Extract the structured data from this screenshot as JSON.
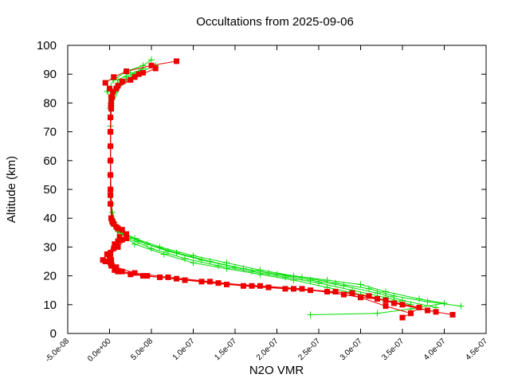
{
  "chart_data": {
    "type": "line",
    "title": "Occultations from 2025-09-06",
    "xlabel": "N2O VMR",
    "ylabel": "Altitude (km)",
    "xlim": [
      -5e-08,
      4.5e-07
    ],
    "ylim": [
      0,
      100
    ],
    "xticks": [
      -5e-08,
      0,
      5e-08,
      1e-07,
      1.5e-07,
      2e-07,
      2.5e-07,
      3e-07,
      3.5e-07,
      4e-07,
      4.5e-07
    ],
    "xtick_labels": [
      "-5.0e-08",
      "0.0e+00",
      "5.0e-08",
      "1.0e-07",
      "1.5e-07",
      "2.0e-07",
      "2.5e-07",
      "3.0e-07",
      "3.5e-07",
      "4.0e-07",
      "4.5e-07"
    ],
    "yticks": [
      0,
      10,
      20,
      30,
      40,
      50,
      60,
      70,
      80,
      90,
      100
    ],
    "ytick_labels": [
      "0",
      "10",
      "20",
      "30",
      "40",
      "50",
      "60",
      "70",
      "80",
      "90",
      "100"
    ],
    "grid": false,
    "legend": "none",
    "series": [
      {
        "color": "#00dd00",
        "marker": "plus",
        "profiles": [
          {
            "x": [
              2.4e-07,
              3.2e-07,
              3.6e-07,
              4e-07,
              3.7e-07,
              3.3e-07,
              3e-07,
              2.6e-07,
              2.2e-07,
              1.8e-07,
              1.4e-07,
              1e-07,
              6e-08,
              3e-08,
              1e-08,
              3e-09,
              1.5e-09,
              1e-09,
              1e-09,
              1e-09,
              2e-09,
              -3e-09,
              5e-09,
              2e-08,
              4e-08,
              5e-08
            ],
            "y": [
              6.5,
              7.0,
              8.5,
              10.5,
              12.0,
              14.5,
              17.0,
              18.5,
              20.0,
              22.0,
              24.5,
              27.0,
              30.0,
              33.0,
              36.0,
              40.0,
              50.0,
              60.0,
              70.0,
              78.0,
              82.0,
              84.0,
              88.0,
              91.0,
              93.0,
              95.0
            ]
          },
          {
            "x": [
              4.2e-07,
              3.8e-07,
              3.4e-07,
              3.1e-07,
              2.7e-07,
              2.3e-07,
              1.9e-07,
              1.5e-07,
              1.1e-07,
              7e-08,
              3.5e-08,
              1.2e-08,
              4e-09,
              2e-09,
              1e-09,
              1e-09,
              1.5e-09,
              2e-09,
              1e-08,
              3e-08,
              5.5e-08
            ],
            "y": [
              9.5,
              11.0,
              13.0,
              15.5,
              17.5,
              19.5,
              21.0,
              23.0,
              25.5,
              28.5,
              32.0,
              35.0,
              38.0,
              45.0,
              55.0,
              65.0,
              75.0,
              80.0,
              86.0,
              90.0,
              93.0
            ]
          },
          {
            "x": [
              3.9e-07,
              3.5e-07,
              3.2e-07,
              2.8e-07,
              2.4e-07,
              2e-07,
              1.6e-07,
              1.2e-07,
              8e-08,
              4.5e-08,
              1.8e-08,
              6e-09,
              2e-09,
              1e-09,
              1e-09,
              2e-09,
              2e-08,
              4e-08
            ],
            "y": [
              9.0,
              11.5,
              14.0,
              16.5,
              18.5,
              20.5,
              22.5,
              25.0,
              28.0,
              31.0,
              34.5,
              38.5,
              45.0,
              60.0,
              72.0,
              81.0,
              89.0,
              92.0
            ]
          },
          {
            "x": [
              3.6e-07,
              3.3e-07,
              2.9e-07,
              2.5e-07,
              2.1e-07,
              1.7e-07,
              1.3e-07,
              9e-08,
              5e-08,
              2.2e-08,
              8e-09,
              3e-09,
              1e-09,
              1e-09,
              2e-09,
              1.5e-08,
              3.5e-08
            ],
            "y": [
              10.0,
              12.5,
              15.0,
              17.5,
              19.5,
              21.5,
              23.5,
              26.0,
              29.5,
              33.0,
              37.0,
              42.0,
              55.0,
              70.0,
              79.0,
              87.0,
              91.0
            ]
          },
          {
            "x": [
              3.4e-07,
              3e-07,
              2.6e-07,
              2.2e-07,
              1.8e-07,
              1.4e-07,
              1e-07,
              6.5e-08,
              3e-08,
              1e-08,
              3e-09,
              1.5e-09,
              1e-09,
              1.5e-09,
              1e-08,
              2.5e-08
            ],
            "y": [
              11.0,
              13.5,
              16.0,
              18.5,
              20.5,
              22.5,
              24.5,
              27.5,
              31.0,
              35.5,
              39.5,
              50.0,
              65.0,
              80.0,
              88.0,
              90.5
            ]
          }
        ]
      },
      {
        "color": "#ee0000",
        "marker": "square",
        "profiles": [
          {
            "x": [
              3.5e-07,
              3.6e-07,
              3.7e-07,
              3.3e-07,
              2.8e-07,
              2.3e-07,
              1.8e-07,
              1.3e-07,
              8e-08,
              4e-08,
              1e-08,
              2e-09,
              -5e-09,
              0,
              1e-08,
              2e-08,
              1.5e-08,
              5e-09,
              2e-09,
              1e-09,
              1e-09,
              1e-09,
              2e-09,
              3e-09,
              0,
              -5e-09,
              5e-09,
              2e-08,
              5e-08,
              8e-08
            ],
            "y": [
              5.5,
              7.0,
              9.0,
              11.5,
              13.5,
              15.5,
              16.5,
              17.5,
              19.0,
              20.0,
              21.5,
              23.5,
              25.0,
              27.0,
              30.0,
              33.0,
              36.0,
              38.0,
              40.0,
              50.0,
              60.0,
              70.0,
              78.0,
              82.0,
              85.0,
              87.0,
              89.0,
              91.0,
              93.0,
              94.5
            ]
          },
          {
            "x": [
              3.6e-07,
              3.3e-07,
              3e-07,
              2.6e-07,
              2.1e-07,
              1.6e-07,
              1.1e-07,
              6e-08,
              2.5e-08,
              6e-09,
              1e-09,
              1e-09,
              5e-09,
              1e-08,
              2e-08,
              1e-08,
              3e-09,
              1e-09,
              1e-09,
              1e-09,
              2e-09,
              1e-08,
              3e-08,
              5.5e-08
            ],
            "y": [
              7.0,
              9.5,
              12.5,
              14.5,
              15.5,
              16.5,
              18.0,
              19.5,
              20.5,
              22.0,
              24.5,
              26.5,
              29.5,
              32.0,
              34.0,
              36.5,
              39.0,
              45.0,
              60.0,
              75.0,
              82.0,
              86.0,
              89.0,
              92.0
            ]
          },
          {
            "x": [
              4.1e-07,
              3.8e-07,
              3.4e-07,
              3.1e-07,
              2.7e-07,
              2.2e-07,
              1.7e-07,
              1.2e-07,
              7e-08,
              3e-08,
              8e-09,
              2e-09,
              1e-09,
              8e-09,
              1.5e-08,
              2e-08,
              8e-09,
              2e-09,
              1e-09,
              1e-09,
              2e-09,
              8e-09,
              2.5e-08,
              4e-08
            ],
            "y": [
              6.5,
              8.0,
              10.5,
              13.0,
              14.5,
              15.5,
              16.5,
              18.0,
              19.5,
              21.0,
              23.0,
              25.5,
              28.0,
              30.5,
              32.5,
              34.5,
              37.0,
              40.0,
              55.0,
              70.0,
              80.0,
              85.0,
              88.0,
              90.5
            ]
          },
          {
            "x": [
              3.9e-07,
              3.5e-07,
              3.2e-07,
              2.9e-07,
              2.4e-07,
              1.9e-07,
              1.4e-07,
              9e-08,
              4.5e-08,
              1.5e-08,
              3e-09,
              -8e-09,
              -3e-09,
              6e-09,
              1.2e-08,
              4e-09,
              1e-09,
              1e-09,
              1.5e-09,
              4e-09,
              1.5e-08,
              3.5e-08
            ],
            "y": [
              7.5,
              10.0,
              12.0,
              14.0,
              15.0,
              16.0,
              17.0,
              18.5,
              20.0,
              21.5,
              23.5,
              25.5,
              27.5,
              31.0,
              33.5,
              38.5,
              48.0,
              65.0,
              79.0,
              84.0,
              87.5,
              90.0
            ]
          }
        ]
      }
    ]
  }
}
